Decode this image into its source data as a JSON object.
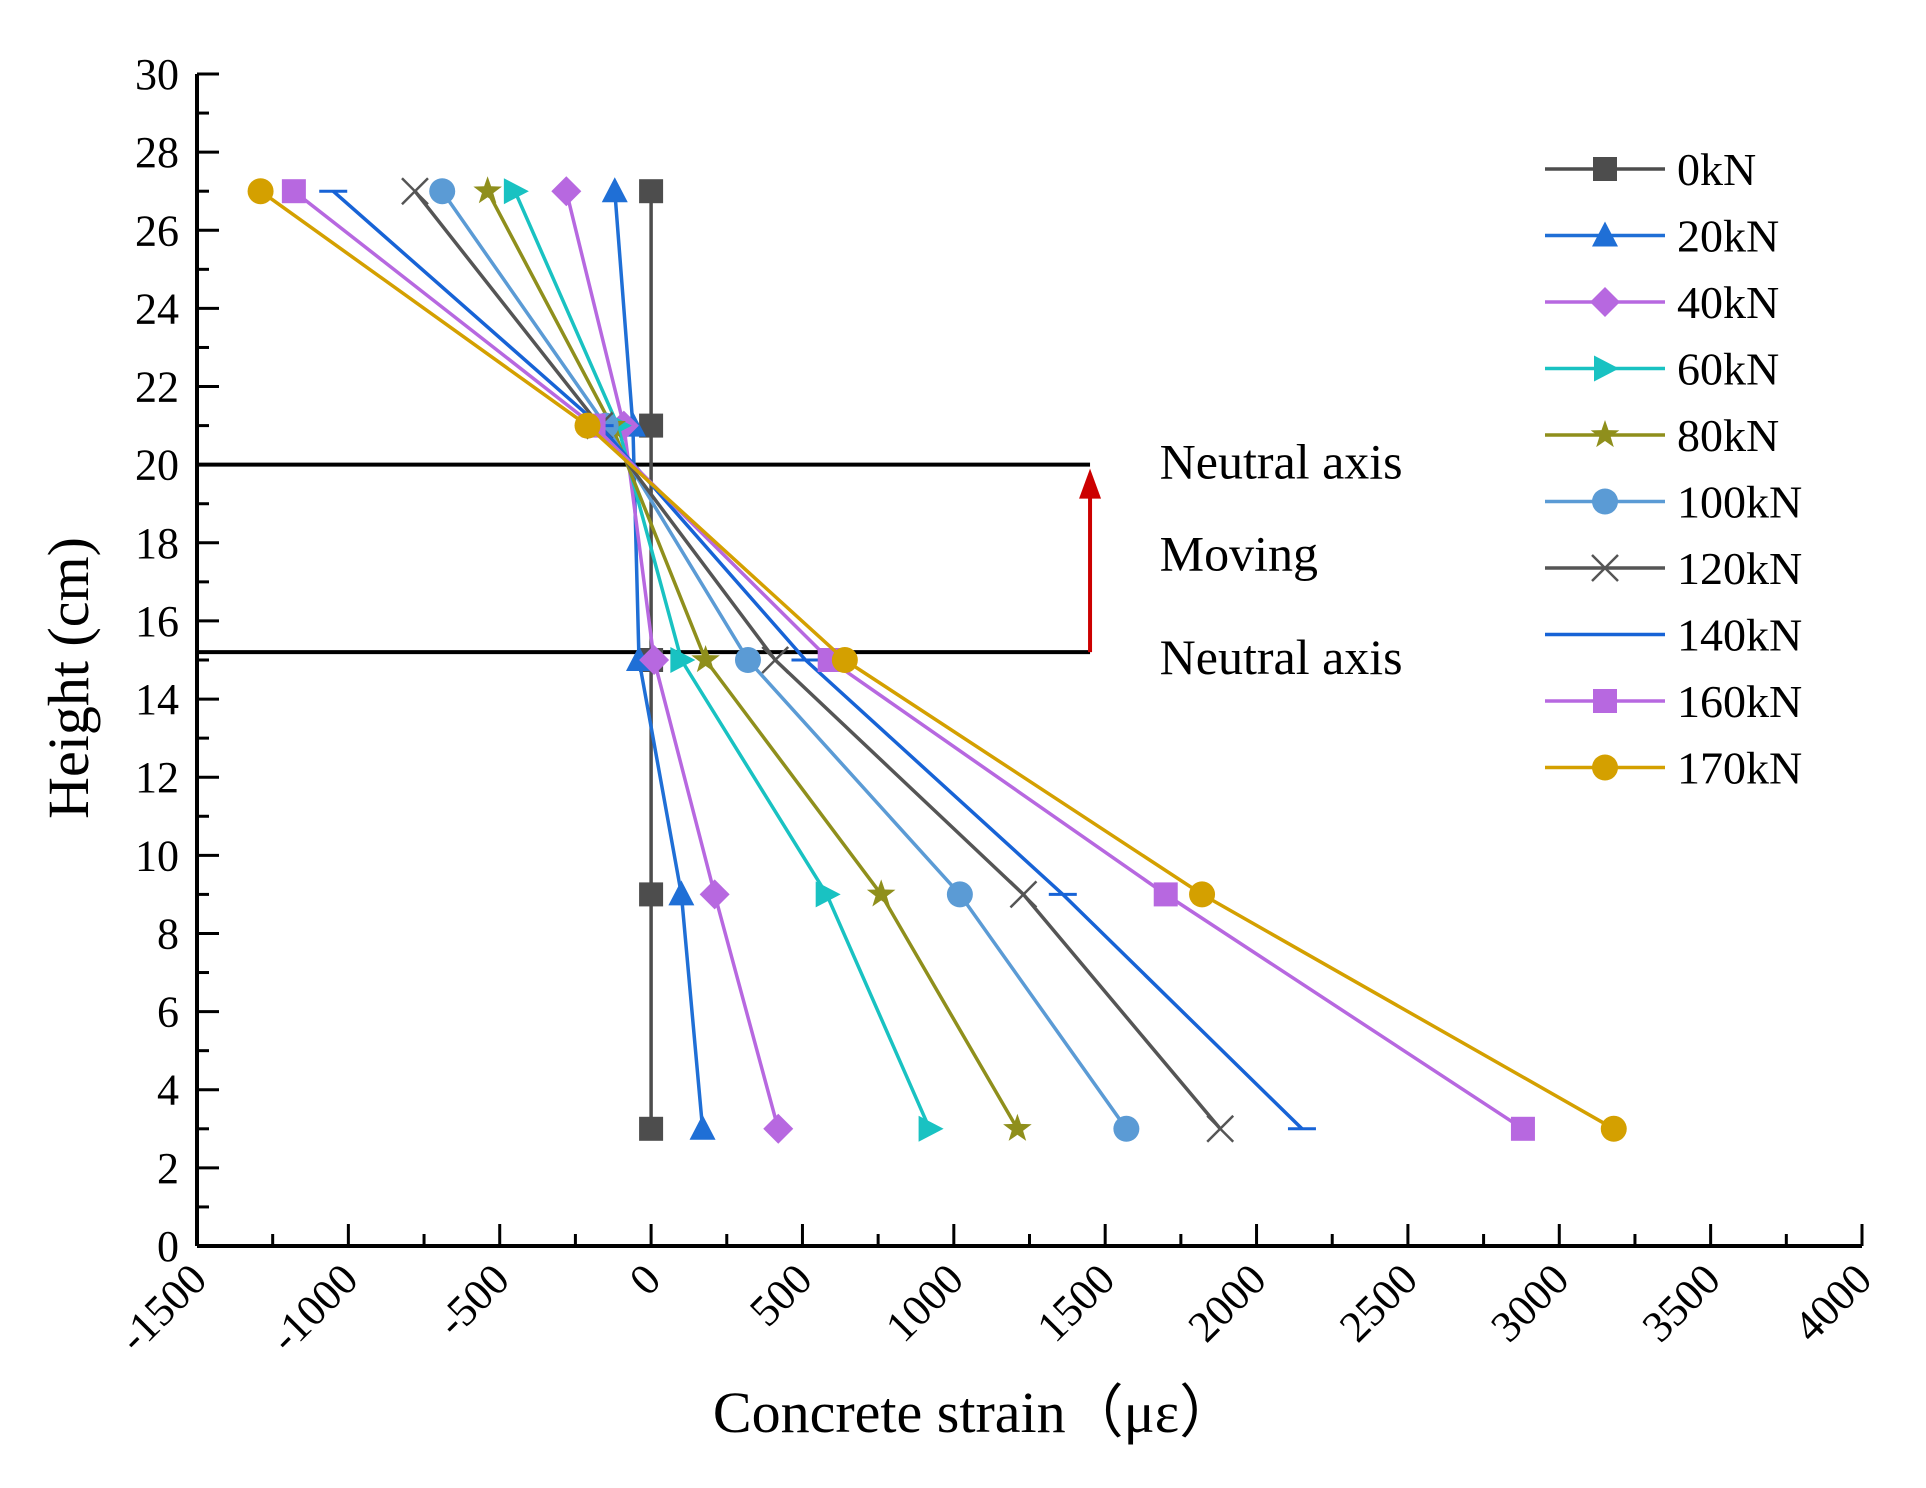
{
  "chart_data": {
    "type": "line",
    "title": "",
    "xlabel": "Concrete strain（με）",
    "ylabel": "Height (cm)",
    "xlim": [
      -1500,
      4000
    ],
    "ylim": [
      0,
      30
    ],
    "x_ticks": [
      -1500,
      -1000,
      -500,
      0,
      500,
      1000,
      1500,
      2000,
      2500,
      3000,
      3500,
      4000
    ],
    "y_ticks": [
      0,
      2,
      4,
      6,
      8,
      10,
      12,
      14,
      16,
      18,
      20,
      22,
      24,
      26,
      28,
      30
    ],
    "grid": false,
    "legend_position": "right",
    "heights": [
      27,
      21,
      15,
      9,
      3
    ],
    "series": [
      {
        "name": "0kN",
        "color": "#4d4d4d",
        "marker": "square",
        "x": [
          0,
          0,
          0,
          0,
          0
        ]
      },
      {
        "name": "20kN",
        "color": "#1f6fd6",
        "marker": "triangle-up",
        "x": [
          -120,
          -60,
          -40,
          100,
          170
        ]
      },
      {
        "name": "40kN",
        "color": "#b768e0",
        "marker": "diamond",
        "x": [
          -280,
          -90,
          10,
          210,
          420
        ]
      },
      {
        "name": "60kN",
        "color": "#19c2c2",
        "marker": "triangle-right",
        "x": [
          -450,
          -110,
          100,
          580,
          920
        ]
      },
      {
        "name": "80kN",
        "color": "#8f8f1c",
        "marker": "star",
        "x": [
          -540,
          -130,
          180,
          760,
          1210
        ]
      },
      {
        "name": "100kN",
        "color": "#5b9bd5",
        "marker": "circle",
        "x": [
          -690,
          -150,
          320,
          1020,
          1570
        ]
      },
      {
        "name": "120kN",
        "color": "#555555",
        "marker": "x",
        "x": [
          -780,
          -170,
          410,
          1230,
          1880
        ]
      },
      {
        "name": "140kN",
        "color": "#1763d6",
        "marker": "dash",
        "x": [
          -1050,
          -170,
          510,
          1360,
          2150
        ]
      },
      {
        "name": "160kN",
        "color": "#b768e0",
        "marker": "square",
        "x": [
          -1180,
          -190,
          590,
          1700,
          2880
        ]
      },
      {
        "name": "170kN",
        "color": "#d4a000",
        "marker": "circle",
        "x": [
          -1290,
          -210,
          640,
          1820,
          3180
        ]
      }
    ],
    "neutral_axis": {
      "upper_y": 20,
      "lower_y": 15.2,
      "line_x_range": [
        -1500,
        1450
      ],
      "arrow_x": 1450,
      "arrow_color": "#cc0000",
      "annotations": [
        "Neutral axis",
        "Moving",
        "Neutral axis"
      ]
    }
  }
}
